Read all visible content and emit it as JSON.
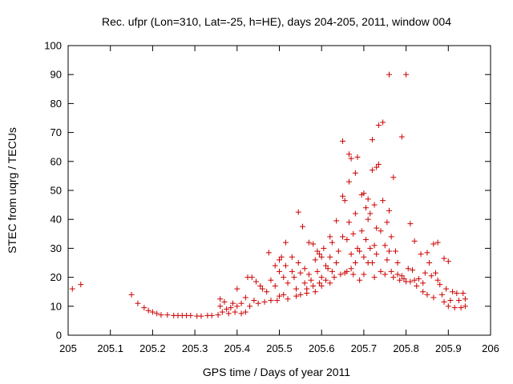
{
  "chart_data": {
    "type": "scatter",
    "title": "Rec. ufpr (Lon=310, Lat=-25, h=HE), days 204-205, 2011, window 004",
    "xlabel": "GPS time / Days of year 2011",
    "ylabel": "STEC from uqrg / TECUs",
    "xlim": [
      205,
      206
    ],
    "ylim": [
      0,
      100
    ],
    "xticks": [
      "205",
      "205.1",
      "205.2",
      "205.3",
      "205.4",
      "205.5",
      "205.6",
      "205.7",
      "205.8",
      "205.9",
      "206"
    ],
    "yticks": [
      "0",
      "10",
      "20",
      "30",
      "40",
      "50",
      "60",
      "70",
      "80",
      "90",
      "100"
    ],
    "grid": false,
    "marker": "+",
    "color": "#cc0000",
    "series": [
      {
        "points": [
          [
            205.01,
            16
          ],
          [
            205.03,
            17.5
          ],
          [
            205.15,
            14
          ],
          [
            205.165,
            11
          ],
          [
            205.18,
            9.5
          ],
          [
            205.19,
            8.5
          ],
          [
            205.2,
            8
          ],
          [
            205.21,
            7.5
          ],
          [
            205.22,
            7
          ],
          [
            205.235,
            7
          ],
          [
            205.25,
            6.8
          ],
          [
            205.26,
            6.8
          ],
          [
            205.27,
            6.8
          ],
          [
            205.28,
            6.8
          ],
          [
            205.29,
            6.8
          ],
          [
            205.305,
            6.6
          ],
          [
            205.315,
            6.6
          ],
          [
            205.33,
            6.8
          ],
          [
            205.34,
            6.8
          ],
          [
            205.355,
            7
          ],
          [
            205.36,
            12.5
          ],
          [
            205.36,
            10
          ],
          [
            205.365,
            8
          ],
          [
            205.37,
            11.5
          ],
          [
            205.375,
            9
          ],
          [
            205.38,
            7.5
          ],
          [
            205.385,
            9.5
          ],
          [
            205.39,
            11
          ],
          [
            205.395,
            8
          ],
          [
            205.4,
            16
          ],
          [
            205.4,
            10
          ],
          [
            205.41,
            7.5
          ],
          [
            205.41,
            11
          ],
          [
            205.42,
            8
          ],
          [
            205.42,
            13
          ],
          [
            205.425,
            20
          ],
          [
            205.43,
            10
          ],
          [
            205.435,
            20
          ],
          [
            205.44,
            12
          ],
          [
            205.445,
            18.5
          ],
          [
            205.45,
            11
          ],
          [
            205.455,
            17
          ],
          [
            205.46,
            16
          ],
          [
            205.465,
            11.5
          ],
          [
            205.47,
            15
          ],
          [
            205.475,
            28.5
          ],
          [
            205.48,
            19
          ],
          [
            205.48,
            12
          ],
          [
            205.49,
            24
          ],
          [
            205.49,
            17
          ],
          [
            205.495,
            12
          ],
          [
            205.5,
            26
          ],
          [
            205.5,
            22
          ],
          [
            205.5,
            13.5
          ],
          [
            205.505,
            27
          ],
          [
            205.51,
            20
          ],
          [
            205.51,
            14
          ],
          [
            205.515,
            32
          ],
          [
            205.515,
            24
          ],
          [
            205.52,
            18
          ],
          [
            205.52,
            12.5
          ],
          [
            205.53,
            27
          ],
          [
            205.53,
            22
          ],
          [
            205.535,
            20
          ],
          [
            205.54,
            16
          ],
          [
            205.54,
            13.5
          ],
          [
            205.545,
            42.5
          ],
          [
            205.545,
            25
          ],
          [
            205.55,
            21.5
          ],
          [
            205.55,
            14
          ],
          [
            205.555,
            37.5
          ],
          [
            205.56,
            23
          ],
          [
            205.56,
            18
          ],
          [
            205.565,
            16
          ],
          [
            205.565,
            14.5
          ],
          [
            205.57,
            32
          ],
          [
            205.57,
            21
          ],
          [
            205.575,
            19
          ],
          [
            205.58,
            31.5
          ],
          [
            205.58,
            17
          ],
          [
            205.585,
            26
          ],
          [
            205.585,
            15
          ],
          [
            205.59,
            29
          ],
          [
            205.59,
            22
          ],
          [
            205.595,
            28
          ],
          [
            205.595,
            18
          ],
          [
            205.6,
            27
          ],
          [
            205.6,
            20
          ],
          [
            205.6,
            17
          ],
          [
            205.605,
            30
          ],
          [
            205.61,
            24
          ],
          [
            205.61,
            19
          ],
          [
            205.615,
            23
          ],
          [
            205.62,
            34
          ],
          [
            205.62,
            27
          ],
          [
            205.62,
            18
          ],
          [
            205.625,
            32
          ],
          [
            205.625,
            22
          ],
          [
            205.63,
            20
          ],
          [
            205.635,
            39.5
          ],
          [
            205.635,
            25
          ],
          [
            205.64,
            29
          ],
          [
            205.645,
            21
          ],
          [
            205.65,
            67
          ],
          [
            205.65,
            48
          ],
          [
            205.65,
            34
          ],
          [
            205.655,
            46.5
          ],
          [
            205.655,
            21.5
          ],
          [
            205.66,
            33
          ],
          [
            205.66,
            22
          ],
          [
            205.665,
            62.5
          ],
          [
            205.665,
            53
          ],
          [
            205.665,
            39
          ],
          [
            205.67,
            61
          ],
          [
            205.67,
            28
          ],
          [
            205.67,
            23
          ],
          [
            205.675,
            35
          ],
          [
            205.675,
            21
          ],
          [
            205.68,
            56
          ],
          [
            205.68,
            42
          ],
          [
            205.68,
            25
          ],
          [
            205.685,
            61.5
          ],
          [
            205.685,
            30
          ],
          [
            205.69,
            29
          ],
          [
            205.69,
            19
          ],
          [
            205.695,
            48.5
          ],
          [
            205.695,
            36
          ],
          [
            205.7,
            49
          ],
          [
            205.7,
            27
          ],
          [
            205.7,
            21
          ],
          [
            205.705,
            44
          ],
          [
            205.705,
            33
          ],
          [
            205.71,
            47
          ],
          [
            205.71,
            40
          ],
          [
            205.71,
            25
          ],
          [
            205.715,
            42
          ],
          [
            205.715,
            30
          ],
          [
            205.72,
            67.5
          ],
          [
            205.72,
            57
          ],
          [
            205.72,
            25
          ],
          [
            205.725,
            45
          ],
          [
            205.725,
            31
          ],
          [
            205.725,
            20
          ],
          [
            205.73,
            58
          ],
          [
            205.73,
            37
          ],
          [
            205.73,
            28
          ],
          [
            205.735,
            72.5
          ],
          [
            205.735,
            59
          ],
          [
            205.74,
            36
          ],
          [
            205.74,
            22
          ],
          [
            205.745,
            73.5
          ],
          [
            205.745,
            46.5
          ],
          [
            205.75,
            31
          ],
          [
            205.75,
            21
          ],
          [
            205.755,
            39
          ],
          [
            205.755,
            26
          ],
          [
            205.76,
            90
          ],
          [
            205.76,
            43
          ],
          [
            205.76,
            29
          ],
          [
            205.765,
            34
          ],
          [
            205.765,
            22
          ],
          [
            205.77,
            54.5
          ],
          [
            205.77,
            20
          ],
          [
            205.775,
            29
          ],
          [
            205.78,
            25
          ],
          [
            205.78,
            21
          ],
          [
            205.785,
            19
          ],
          [
            205.79,
            68.5
          ],
          [
            205.79,
            20.5
          ],
          [
            205.795,
            19.5
          ],
          [
            205.8,
            90
          ],
          [
            205.8,
            18.5
          ],
          [
            205.805,
            23
          ],
          [
            205.81,
            38.5
          ],
          [
            205.81,
            18.5
          ],
          [
            205.815,
            22.5
          ],
          [
            205.82,
            32.5
          ],
          [
            205.82,
            19
          ],
          [
            205.825,
            17
          ],
          [
            205.83,
            19.5
          ],
          [
            205.835,
            28
          ],
          [
            205.84,
            18
          ],
          [
            205.84,
            15
          ],
          [
            205.845,
            21.5
          ],
          [
            205.85,
            28.5
          ],
          [
            205.85,
            14
          ],
          [
            205.855,
            25
          ],
          [
            205.86,
            20.5
          ],
          [
            205.865,
            31.5
          ],
          [
            205.865,
            13
          ],
          [
            205.87,
            21.5
          ],
          [
            205.875,
            32
          ],
          [
            205.875,
            19
          ],
          [
            205.88,
            17.5
          ],
          [
            205.885,
            14
          ],
          [
            205.89,
            26.5
          ],
          [
            205.89,
            11.5
          ],
          [
            205.895,
            16
          ],
          [
            205.9,
            25.5
          ],
          [
            205.9,
            10
          ],
          [
            205.905,
            12
          ],
          [
            205.91,
            15
          ],
          [
            205.915,
            9.5
          ],
          [
            205.92,
            14.5
          ],
          [
            205.925,
            12
          ],
          [
            205.93,
            9.5
          ],
          [
            205.935,
            14.5
          ],
          [
            205.94,
            12.5
          ],
          [
            205.94,
            10
          ]
        ]
      }
    ]
  }
}
